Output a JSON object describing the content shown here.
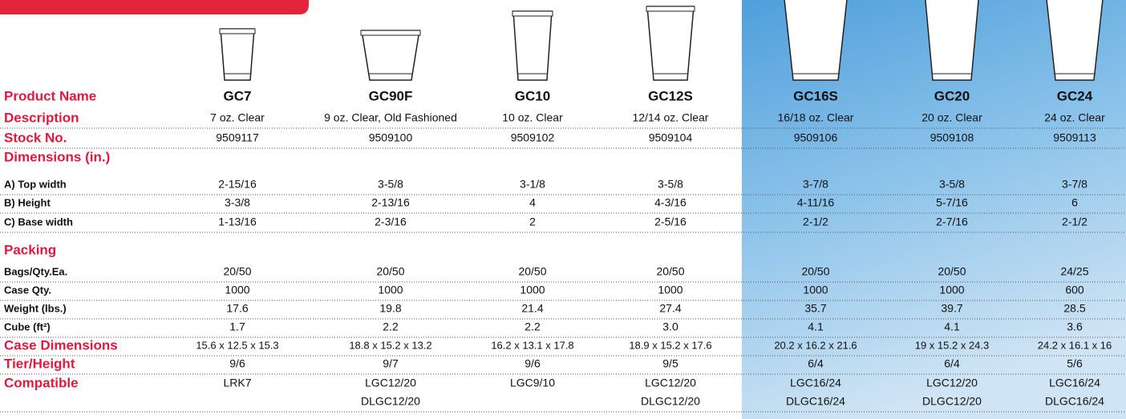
{
  "rows": [
    {
      "label": "Product Name",
      "cells": [
        "GC7",
        "GC90F",
        "GC10",
        "GC12S",
        "GC16S",
        "GC20",
        "GC24"
      ]
    },
    {
      "label": "Description",
      "cells": [
        "7 oz. Clear",
        "9 oz. Clear, Old Fashioned",
        "10 oz. Clear",
        "12/14 oz. Clear",
        "16/18 oz. Clear",
        "20 oz. Clear",
        "24 oz. Clear"
      ]
    },
    {
      "label": "Stock No.",
      "cells": [
        "9509117",
        "9509100",
        "9509102",
        "9509104",
        "9509106",
        "9509108",
        "9509113"
      ]
    },
    {
      "label": "Dimensions (in.)"
    },
    {
      "label": "A) Top width",
      "cells": [
        "2-15/16",
        "3-5/8",
        "3-1/8",
        "3-5/8",
        "3-7/8",
        "3-5/8",
        "3-7/8"
      ]
    },
    {
      "label": "B) Height",
      "cells": [
        "3-3/8",
        "2-13/16",
        "4",
        "4-3/16",
        "4-11/16",
        "5-7/16",
        "6"
      ]
    },
    {
      "label": "C) Base width",
      "cells": [
        "1-13/16",
        "2-3/16",
        "2",
        "2-5/16",
        "2-1/2",
        "2-7/16",
        "2-1/2"
      ]
    },
    {
      "label": "Packing"
    },
    {
      "label": "Bags/Qty.Ea.",
      "cells": [
        "20/50",
        "20/50",
        "20/50",
        "20/50",
        "20/50",
        "20/50",
        "24/25"
      ]
    },
    {
      "label": "Case Qty.",
      "cells": [
        "1000",
        "1000",
        "1000",
        "1000",
        "1000",
        "1000",
        "600"
      ]
    },
    {
      "label": "Weight (lbs.)",
      "cells": [
        "17.6",
        "19.8",
        "21.4",
        "27.4",
        "35.7",
        "39.7",
        "28.5"
      ]
    },
    {
      "label": "Cube (ft²)",
      "cells": [
        "1.7",
        "2.2",
        "2.2",
        "3.0",
        "4.1",
        "4.1",
        "3.6"
      ]
    },
    {
      "label": "Case Dimensions",
      "cells": [
        "15.6 x 12.5 x 15.3",
        "18.8 x 15.2 x 13.2",
        "16.2 x 13.1 x 17.8",
        "18.9 x 15.2 x 17.6",
        "20.2 x 16.2 x 21.6",
        "19 x 15.2 x 24.3",
        "24.2 x 16.1 x 16"
      ]
    },
    {
      "label": "Tier/Height",
      "cells": [
        "9/6",
        "9/7",
        "9/6",
        "9/5",
        "6/4",
        "6/4",
        "5/6"
      ]
    },
    {
      "label": "Compatible",
      "cells": [
        [
          "LRK7"
        ],
        [
          "LGC12/20",
          "DLGC12/20"
        ],
        [
          "LGC9/10"
        ],
        [
          "LGC12/20",
          "DLGC12/20"
        ],
        [
          "LGC16/24",
          "DLGC16/24"
        ],
        [
          "LGC12/20",
          "DLGC12/20"
        ],
        [
          "LGC16/24",
          "DLGC16/24"
        ]
      ]
    }
  ]
}
